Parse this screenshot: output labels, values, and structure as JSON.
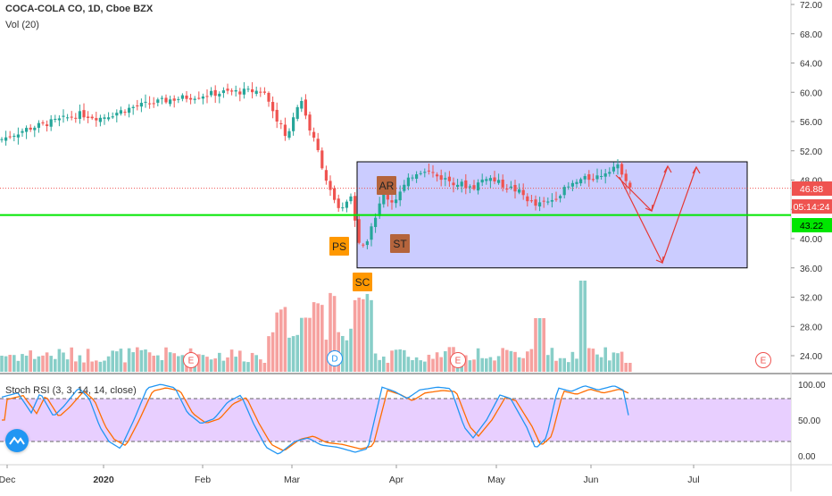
{
  "header": {
    "title": "COCA-COLA CO, 1D, Cboe BZX",
    "vol_label": "Vol (20)",
    "rsi_label": "Stoch RSI (3, 3, 14, 14, close)"
  },
  "price_axis": {
    "ticks": [
      "72.00",
      "68.00",
      "64.00",
      "60.00",
      "56.00",
      "52.00",
      "48.00",
      "44.00",
      "40.00",
      "36.00",
      "32.00",
      "28.00",
      "24.00"
    ],
    "current_price": "46.88",
    "countdown": "05:14:24",
    "support_price": "43.22"
  },
  "rsi_axis": {
    "ticks": [
      "100.00",
      "50.00",
      "0.00"
    ]
  },
  "time_axis": {
    "labels": [
      "Dec",
      "2020",
      "Feb",
      "Mar",
      "Apr",
      "May",
      "Jun",
      "Jul"
    ]
  },
  "annotations": {
    "wyckoff": [
      {
        "label": "PS",
        "color": "#ff9800"
      },
      {
        "label": "SC",
        "color": "#ff9800"
      },
      {
        "label": "AR",
        "color": "#b4643c"
      },
      {
        "label": "ST",
        "color": "#b4643c"
      }
    ],
    "events": [
      "E",
      "D",
      "E",
      "E"
    ]
  },
  "colors": {
    "up": "#26a69a",
    "down": "#ef5350",
    "box_fill": "#c5c7ff",
    "box_stroke": "#000000",
    "support_line": "#00e600",
    "rsi_band": "#e8cfff",
    "stoch_k": "#2196f3",
    "stoch_d": "#ff6d00",
    "arrows": "#e53935"
  },
  "chart_data": {
    "type": "candlestick",
    "symbol": "COCA-COLA CO",
    "interval": "1D",
    "exchange": "Cboe BZX",
    "ylim": [
      22,
      74
    ],
    "current_price": 46.88,
    "support_level": 43.22,
    "accumulation_range": [
      36.0,
      50.5
    ],
    "stoch_rsi": {
      "ylim": [
        -8,
        106
      ],
      "upper_band": 80,
      "lower_band": 20
    }
  }
}
